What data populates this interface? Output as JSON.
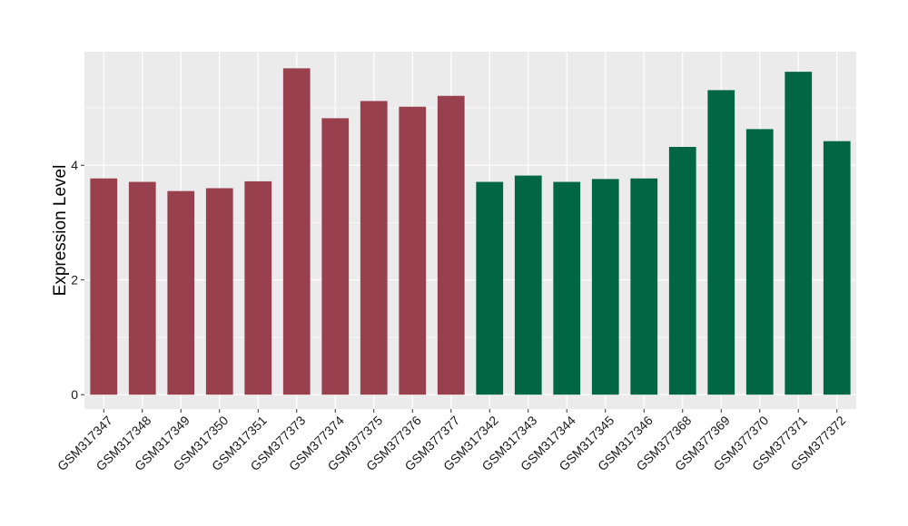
{
  "chart_data": {
    "type": "bar",
    "title": "",
    "xlabel": "",
    "ylabel": "Expression Level",
    "ylim": [
      -0.25,
      5.98
    ],
    "yticks": [
      0,
      2,
      4
    ],
    "grid": true,
    "legend": "none",
    "categories": [
      "GSM317347",
      "GSM317348",
      "GSM317349",
      "GSM317350",
      "GSM317351",
      "GSM377373",
      "GSM377374",
      "GSM377375",
      "GSM377376",
      "GSM377377",
      "GSM317342",
      "GSM317343",
      "GSM317344",
      "GSM317345",
      "GSM317346",
      "GSM377368",
      "GSM377369",
      "GSM377370",
      "GSM377371",
      "GSM377372"
    ],
    "values": [
      3.77,
      3.71,
      3.55,
      3.6,
      3.72,
      5.69,
      4.82,
      5.12,
      5.02,
      5.21,
      3.71,
      3.82,
      3.71,
      3.76,
      3.77,
      4.32,
      5.31,
      4.63,
      5.63,
      4.42
    ],
    "groups": [
      "a",
      "a",
      "a",
      "a",
      "a",
      "a",
      "a",
      "a",
      "a",
      "a",
      "b",
      "b",
      "b",
      "b",
      "b",
      "b",
      "b",
      "b",
      "b",
      "b"
    ],
    "colors": {
      "a": "#99404F",
      "b": "#006643"
    },
    "panel_background": "#EBEBEB",
    "gridline_color": "#FFFFFF"
  }
}
